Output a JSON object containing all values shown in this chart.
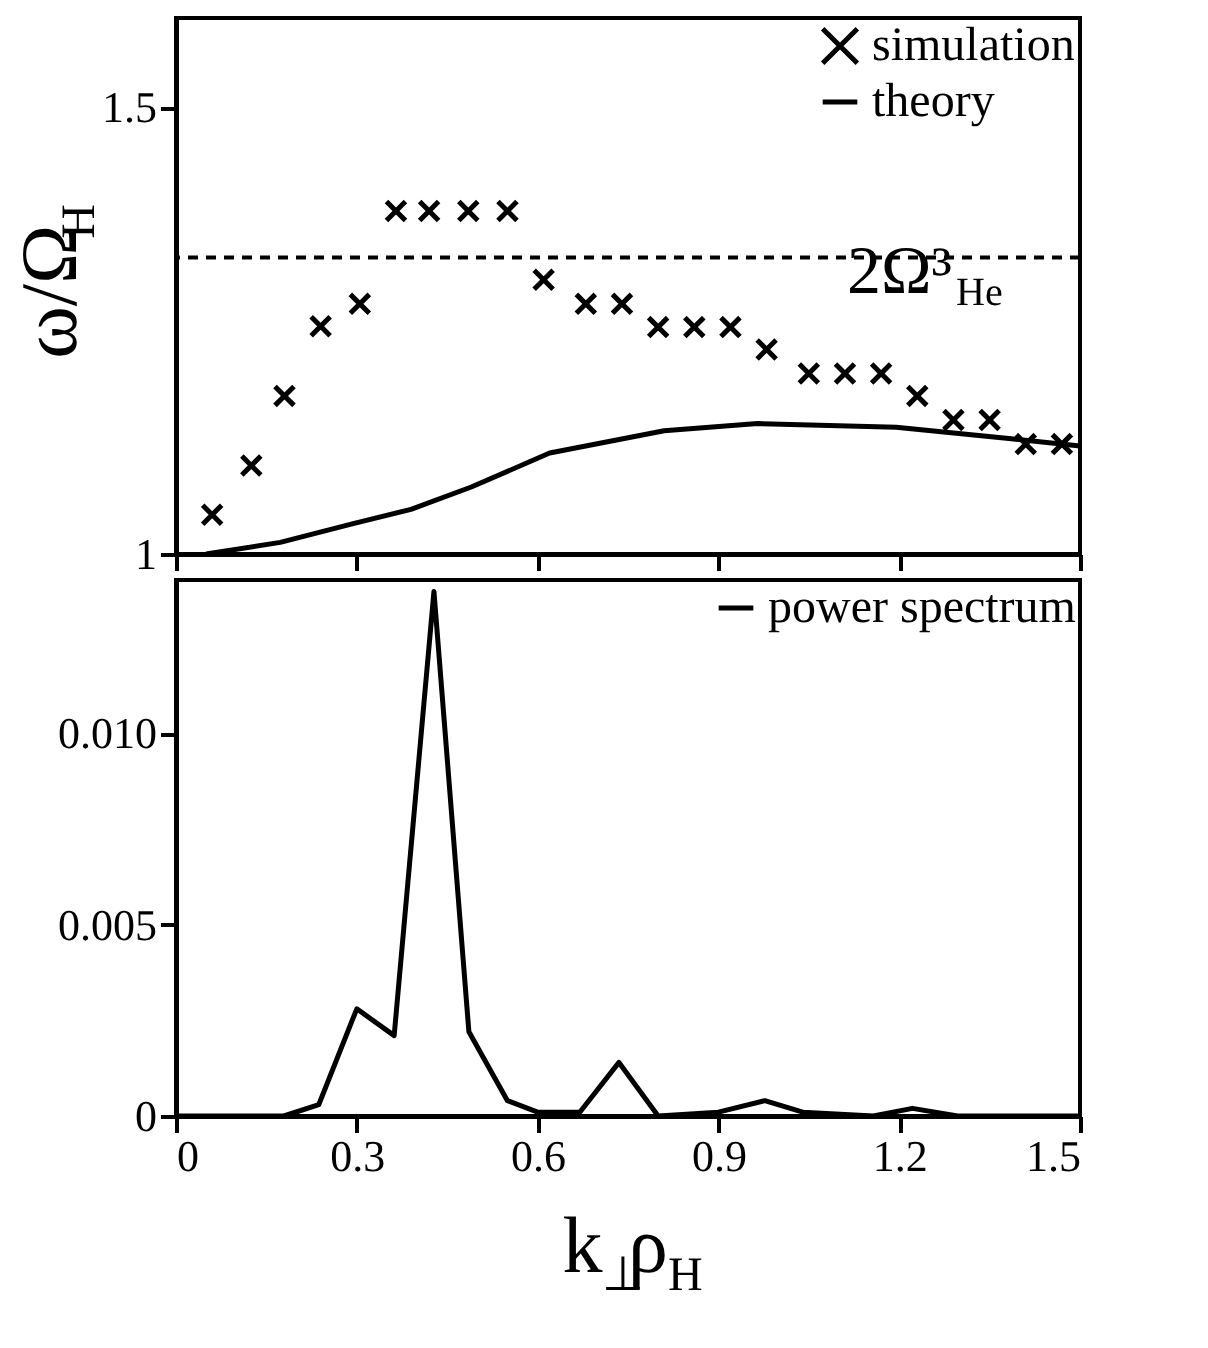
{
  "chart_data": [
    {
      "type": "scatter",
      "ylabel": "ω/Ω$_{H}$",
      "xlim": [
        0,
        1.5
      ],
      "xticks": [
        {
          "value": 0,
          "label": null
        },
        {
          "value": 0.3,
          "label": null
        },
        {
          "value": 0.6,
          "label": null
        },
        {
          "value": 0.9,
          "label": null
        },
        {
          "value": 1.2,
          "label": null
        },
        {
          "value": 1.5,
          "label": null
        }
      ],
      "ylim": [
        1,
        1.6
      ],
      "yticks": [
        1,
        1.5
      ],
      "tick_labels": "y",
      "legend": "top right",
      "grid": false,
      "series": [
        {
          "name": "simulation",
          "marker": "cross",
          "color": "#000000",
          "x": [
            0.06,
            0.125,
            0.18,
            0.24,
            0.305,
            0.365,
            0.42,
            0.485,
            0.55,
            0.61,
            0.68,
            0.74,
            0.8,
            0.86,
            0.92,
            0.98,
            1.05,
            1.11,
            1.17,
            1.23,
            1.29,
            1.35,
            1.41,
            1.47
          ],
          "values": [
            1.044,
            1.099,
            1.177,
            1.255,
            1.28,
            1.384,
            1.384,
            1.384,
            1.384,
            1.307,
            1.28,
            1.28,
            1.254,
            1.254,
            1.254,
            1.229,
            1.202,
            1.202,
            1.202,
            1.177,
            1.15,
            1.15,
            1.123,
            1.123
          ]
        },
        {
          "name": "theory",
          "type": "line",
          "line_style": "solid",
          "color": "#000000",
          "x": [
            0.05,
            0.173,
            0.294,
            0.39,
            0.49,
            0.62,
            0.81,
            0.965,
            1.195,
            1.386,
            1.5
          ],
          "values": [
            1.0,
            1.013,
            1.034,
            1.05,
            1.075,
            1.113,
            1.138,
            1.146,
            1.142,
            1.129,
            1.121
          ]
        }
      ],
      "ref_lines": [
        {
          "axis": "y",
          "value": 1.332,
          "label": "2Ω³$_{He}$",
          "line_style": "dashed",
          "color": "#000000"
        }
      ]
    },
    {
      "type": "line",
      "xlabel": "k$_{⊥}$ρ$_{H}$",
      "xlim": [
        0,
        1.5
      ],
      "xticks": [
        0,
        0.3,
        0.6,
        0.9,
        1.2,
        1.5
      ],
      "ylim": [
        0,
        0.014
      ],
      "yticks": [
        0,
        0.005,
        {
          "value": 0.01,
          "label": "0.010"
        }
      ],
      "legend": "top right",
      "grid": false,
      "series": [
        {
          "name": "power spectrum",
          "line_style": "solid",
          "color": "#000000",
          "x": [
            0,
            0.179,
            0.237,
            0.3,
            0.362,
            0.428,
            0.486,
            0.55,
            0.6,
            0.67,
            0.735,
            0.8,
            0.9,
            0.977,
            1.04,
            1.157,
            1.222,
            1.297,
            1.5
          ],
          "values": [
            0,
            0,
            0.0003,
            0.0028,
            0.0021,
            0.0137,
            0.0022,
            0.0004,
            0.0001,
            0.0001,
            0.0014,
            0,
            0.0001,
            0.0004,
            0.0001,
            0,
            0.0002,
            0,
            0
          ]
        }
      ]
    }
  ]
}
